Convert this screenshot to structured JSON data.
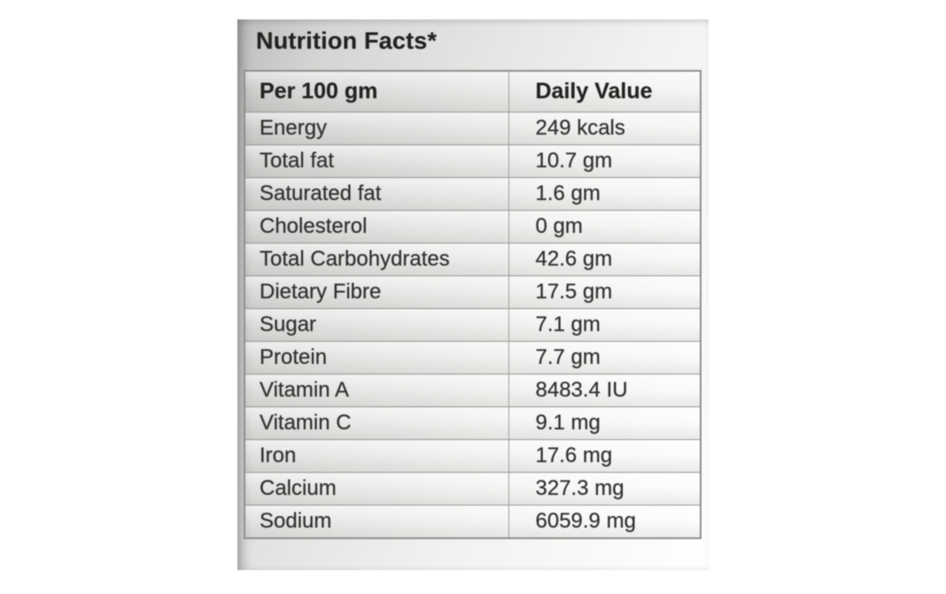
{
  "label": {
    "title": "Nutrition Facts*",
    "table": {
      "header": {
        "col1": "Per 100 gm",
        "col2": "Daily Value"
      },
      "rows": [
        {
          "name": "Energy",
          "value": "249 kcals"
        },
        {
          "name": "Total fat",
          "value": "10.7 gm"
        },
        {
          "name": "Saturated fat",
          "value": "1.6 gm"
        },
        {
          "name": "Cholesterol",
          "value": "0 gm"
        },
        {
          "name": "Total Carbohydrates",
          "value": "42.6 gm"
        },
        {
          "name": "Dietary Fibre",
          "value": "17.5 gm"
        },
        {
          "name": "Sugar",
          "value": "7.1 gm"
        },
        {
          "name": "Protein",
          "value": "7.7 gm"
        },
        {
          "name": "Vitamin A",
          "value": "8483.4 IU"
        },
        {
          "name": "Vitamin C",
          "value": "9.1 mg"
        },
        {
          "name": "Iron",
          "value": "17.6 mg"
        },
        {
          "name": "Calcium",
          "value": "327.3 mg"
        },
        {
          "name": "Sodium",
          "value": "6059.9 mg"
        }
      ]
    }
  },
  "colors": {
    "label_foil_light": "#fafaf9",
    "label_foil_dark": "#bdbdbb",
    "table_border": "#8f8f8d",
    "row_line": "#9d9d9b",
    "text": "#30302e"
  }
}
